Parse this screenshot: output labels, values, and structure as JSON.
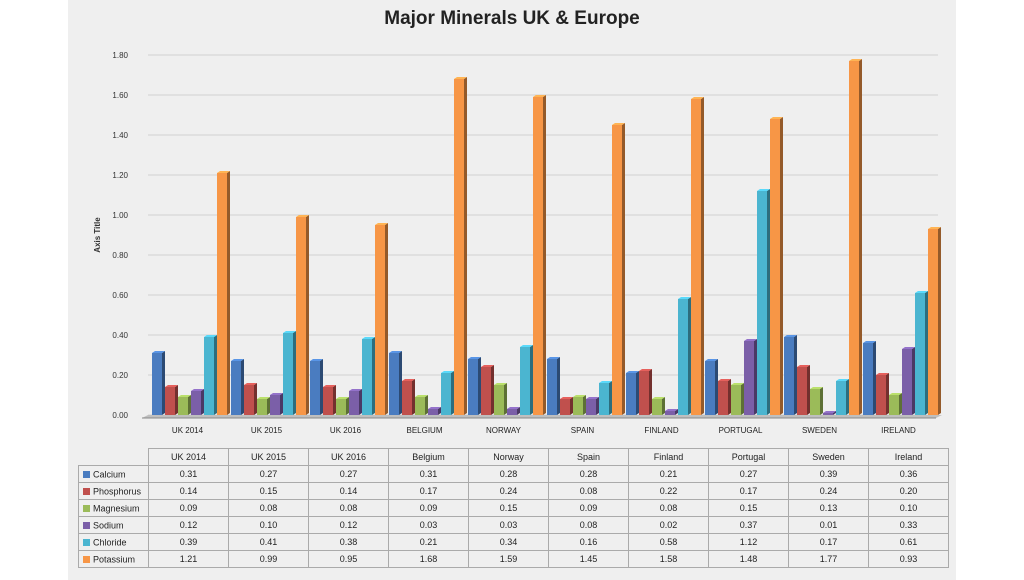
{
  "chart_data": {
    "type": "bar",
    "title": "Major Minerals UK & Europe",
    "ylabel": "Axis Title",
    "ylim": [
      0,
      1.8
    ],
    "y_ticks": [
      "0.00",
      "0.20",
      "0.40",
      "0.60",
      "0.80",
      "1.00",
      "1.20",
      "1.40",
      "1.60",
      "1.80"
    ],
    "categories": [
      "UK 2014",
      "UK 2015",
      "UK 2016",
      "BELGIUM",
      "NORWAY",
      "SPAIN",
      "FINLAND",
      "PORTUGAL",
      "SWEDEN",
      "IRELAND"
    ],
    "table_headers": [
      "UK 2014",
      "UK 2015",
      "UK 2016",
      "Belgium",
      "Norway",
      "Spain",
      "Finland",
      "Portugal",
      "Sweden",
      "Ireland"
    ],
    "grid": true,
    "series": [
      {
        "name": "Calcium",
        "color": "#4a7cc0",
        "values": [
          0.31,
          0.27,
          0.27,
          0.31,
          0.28,
          0.28,
          0.21,
          0.27,
          0.39,
          0.36
        ],
        "labels": [
          "0.31",
          "0.27",
          "0.27",
          "0.31",
          "0.28",
          "0.28",
          "0.21",
          "0.27",
          "0.39",
          "0.36"
        ]
      },
      {
        "name": "Phosphorus",
        "color": "#c0504d",
        "values": [
          0.14,
          0.15,
          0.14,
          0.17,
          0.24,
          0.08,
          0.22,
          0.17,
          0.24,
          0.2
        ],
        "labels": [
          "0.14",
          "0.15",
          "0.14",
          "0.17",
          "0.24",
          "0.08",
          "0.22",
          "0.17",
          "0.24",
          "0.20"
        ]
      },
      {
        "name": "Magnesium",
        "color": "#9bbb59",
        "values": [
          0.09,
          0.08,
          0.08,
          0.09,
          0.15,
          0.09,
          0.08,
          0.15,
          0.13,
          0.1
        ],
        "labels": [
          "0.09",
          "0.08",
          "0.08",
          "0.09",
          "0.15",
          "0.09",
          "0.08",
          "0.15",
          "0.13",
          "0.10"
        ]
      },
      {
        "name": "Sodium",
        "color": "#7b5fa8",
        "values": [
          0.12,
          0.1,
          0.12,
          0.03,
          0.03,
          0.08,
          0.02,
          0.37,
          0.01,
          0.33
        ],
        "labels": [
          "0.12",
          "0.10",
          "0.12",
          "0.03",
          "0.03",
          "0.08",
          "0.02",
          "0.37",
          "0.01",
          "0.33"
        ]
      },
      {
        "name": "Chloride",
        "color": "#4bb5d0",
        "values": [
          0.39,
          0.41,
          0.38,
          0.21,
          0.34,
          0.16,
          0.58,
          1.12,
          0.17,
          0.61
        ],
        "labels": [
          "0.39",
          "0.41",
          "0.38",
          "0.21",
          "0.34",
          "0.16",
          "0.58",
          "1.12",
          "0.17",
          "0.61"
        ]
      },
      {
        "name": "Potassium",
        "color": "#f79646",
        "values": [
          1.21,
          0.99,
          0.95,
          1.68,
          1.59,
          1.45,
          1.58,
          1.48,
          1.77,
          0.93
        ],
        "labels": [
          "1.21",
          "0.99",
          "0.95",
          "1.68",
          "1.59",
          "1.45",
          "1.58",
          "1.48",
          "1.77",
          "0.93"
        ]
      }
    ]
  }
}
